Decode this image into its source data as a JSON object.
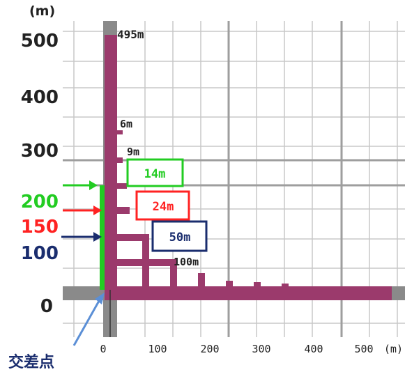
{
  "y_axis": {
    "unit": "(m)",
    "ticks": [
      "500",
      "400",
      "300",
      "0"
    ],
    "highlighted": [
      {
        "label": "200",
        "color": "#22cc22"
      },
      {
        "label": "150",
        "color": "#ff2222"
      },
      {
        "label": "100",
        "color": "#1a2d6e"
      }
    ]
  },
  "x_axis": {
    "ticks": [
      "0",
      "100",
      "200",
      "300",
      "400",
      "500"
    ],
    "unit": "(m)"
  },
  "labels": {
    "tall_bar": "495m",
    "six": "6m",
    "nine": "9m",
    "green_box": "14m",
    "red_box": "24m",
    "navy_box": "50m",
    "hundred": "100m",
    "intersection": "交差点"
  },
  "colors": {
    "road": "#9b3a6c",
    "green": "#22cc22",
    "red": "#ff2222",
    "navy": "#1a2d6e",
    "axis_gray": "#8a8a8a",
    "grid": "#c8c8c8",
    "major_grid": "#9e9e9e",
    "arrow_blue": "#5b8fd6"
  }
}
